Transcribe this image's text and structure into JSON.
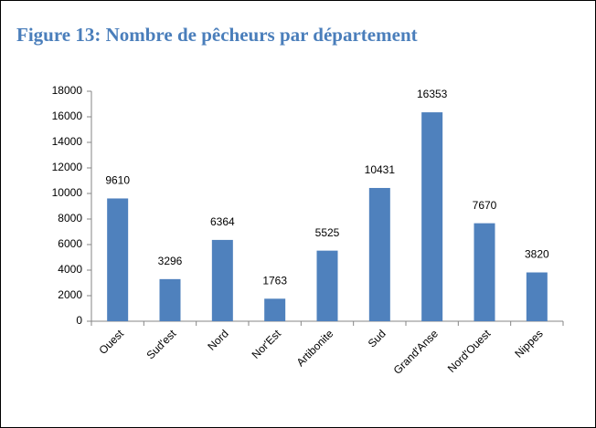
{
  "chart_data": {
    "type": "bar",
    "title": "Figure 13: Nombre de pêcheurs par département",
    "categories": [
      "Ouest",
      "Sud'est",
      "Nord",
      "Nor'Est",
      "Artibonite",
      "Sud",
      "Grand'Anse",
      "Nord'Ouest",
      "Nippes"
    ],
    "values": [
      9610,
      3296,
      6364,
      1763,
      5525,
      10431,
      16353,
      7670,
      3820
    ],
    "color": "#4f81bd",
    "ylim": [
      0,
      18000
    ],
    "yticks": [
      0,
      2000,
      4000,
      6000,
      8000,
      10000,
      12000,
      14000,
      16000,
      18000
    ],
    "grid": false
  }
}
